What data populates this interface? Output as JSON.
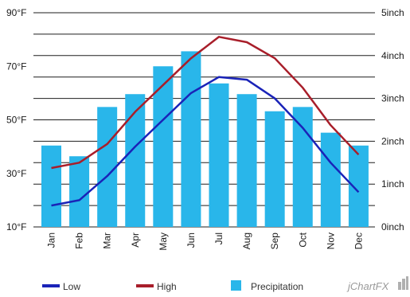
{
  "chart_data": {
    "type": "bar",
    "title": "",
    "xlabel": "",
    "categories": [
      "Jan",
      "Feb",
      "Mar",
      "Apr",
      "May",
      "Jun",
      "Jul",
      "Aug",
      "Sep",
      "Oct",
      "Nov",
      "Dec"
    ],
    "y_left": {
      "min": 10,
      "max": 90,
      "ticks": [
        "10°F",
        "30°F",
        "50°F",
        "70°F",
        "90°F"
      ],
      "tick_values": [
        10,
        30,
        50,
        70,
        90
      ]
    },
    "y_right": {
      "min": 0,
      "max": 5,
      "ticks": [
        "0inch",
        "1inch",
        "2inch",
        "3inch",
        "4inch",
        "5inch"
      ],
      "tick_values": [
        0,
        1,
        2,
        3,
        4,
        5
      ]
    },
    "grid": true,
    "legend_position": "bottom",
    "series": [
      {
        "name": "Precipitation",
        "type": "bar",
        "axis": "right",
        "color": "#29B6EA",
        "values": [
          1.9,
          1.65,
          2.8,
          3.1,
          3.75,
          4.1,
          3.35,
          3.1,
          2.7,
          2.8,
          2.2,
          1.9
        ]
      },
      {
        "name": "Low",
        "type": "line",
        "axis": "left",
        "color": "#1A23B8",
        "values": [
          18,
          20,
          29,
          40,
          50,
          60,
          66,
          65,
          58,
          47,
          34,
          23
        ]
      },
      {
        "name": "High",
        "type": "line",
        "axis": "left",
        "color": "#A81E2A",
        "values": [
          32,
          34,
          41,
          53,
          63,
          73,
          81,
          79,
          73,
          62,
          48,
          37
        ]
      }
    ]
  },
  "logo": {
    "text": "jChartFX"
  }
}
